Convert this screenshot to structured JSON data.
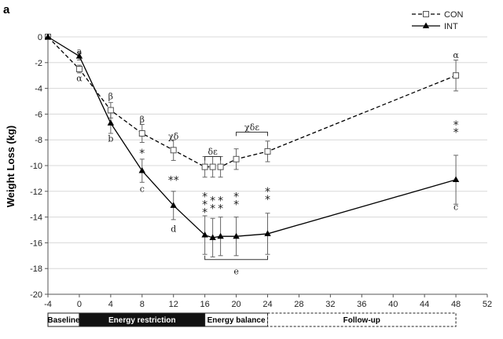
{
  "chart_data": {
    "type": "line",
    "panel_label": "a",
    "xlabel": "",
    "ylabel": "Weight Loss (kg)",
    "xlim": [
      -4,
      52
    ],
    "ylim": [
      -20,
      0
    ],
    "x_ticks": [
      "-4",
      "0",
      "4",
      "8",
      "12",
      "16",
      "20",
      "24",
      "28",
      "32",
      "36",
      "40",
      "44",
      "48",
      "52"
    ],
    "y_ticks": [
      "0",
      "-2",
      "-4",
      "-6",
      "-8",
      "-10",
      "-12",
      "-14",
      "-16",
      "-18",
      "-20"
    ],
    "grid": "horizontal",
    "legend_position": "top-right",
    "series": [
      {
        "name": "CON",
        "style": "dashed",
        "marker": "open-square",
        "color": "#000000",
        "x": [
          -4,
          0,
          4,
          8,
          12,
          16,
          17,
          18,
          20,
          24,
          48
        ],
        "y": [
          0,
          -2.5,
          -5.7,
          -7.5,
          -8.8,
          -10.1,
          -10.1,
          -10.1,
          -9.5,
          -8.9,
          -3.0
        ],
        "err": [
          0,
          0.3,
          0.6,
          0.7,
          0.8,
          0.8,
          0.8,
          0.8,
          0.8,
          0.8,
          1.2
        ]
      },
      {
        "name": "INT",
        "style": "solid",
        "marker": "filled-triangle",
        "color": "#000000",
        "x": [
          -4,
          0,
          4,
          8,
          12,
          16,
          17,
          18,
          20,
          24,
          48
        ],
        "y": [
          0,
          -1.5,
          -6.7,
          -10.4,
          -13.1,
          -15.4,
          -15.6,
          -15.5,
          -15.5,
          -15.3,
          -11.1
        ],
        "err": [
          0,
          0.3,
          0.8,
          0.9,
          1.1,
          1.5,
          1.5,
          1.5,
          1.5,
          1.6,
          1.9
        ]
      }
    ],
    "annotations": [
      {
        "text": "a",
        "x": 0,
        "y": -1.1
      },
      {
        "text": "α",
        "x": 0,
        "y": -3.2
      },
      {
        "text": "β",
        "x": 4,
        "y": -4.6
      },
      {
        "text": "b",
        "x": 4,
        "y": -7.9
      },
      {
        "text": "β",
        "x": 8,
        "y": -6.4
      },
      {
        "text": "*",
        "x": 8,
        "y": -8.9
      },
      {
        "text": "c",
        "x": 8,
        "y": -11.8
      },
      {
        "text": "χδ",
        "x": 12,
        "y": -7.7
      },
      {
        "text": "**",
        "x": 12,
        "y": -11.0
      },
      {
        "text": "d",
        "x": 12,
        "y": -14.9
      },
      {
        "text": "δε",
        "x": 17,
        "y": -8.9
      },
      {
        "text": "χδε",
        "x": 22,
        "y": -7.0
      },
      {
        "text": "*",
        "x": 16,
        "y": -12.3
      },
      {
        "text": "*",
        "x": 16,
        "y": -12.9
      },
      {
        "text": "*",
        "x": 16,
        "y": -13.5
      },
      {
        "text": "*",
        "x": 17,
        "y": -12.6
      },
      {
        "text": "*",
        "x": 17,
        "y": -13.2
      },
      {
        "text": "*",
        "x": 18,
        "y": -12.6
      },
      {
        "text": "*",
        "x": 18,
        "y": -13.2
      },
      {
        "text": "*",
        "x": 20,
        "y": -12.3
      },
      {
        "text": "*",
        "x": 20,
        "y": -12.9
      },
      {
        "text": "*",
        "x": 24,
        "y": -11.9
      },
      {
        "text": "*",
        "x": 24,
        "y": -12.5
      },
      {
        "text": "α",
        "x": 48,
        "y": -1.4
      },
      {
        "text": "*",
        "x": 48,
        "y": -6.7
      },
      {
        "text": "*",
        "x": 48,
        "y": -7.3
      },
      {
        "text": "c",
        "x": 48,
        "y": -13.2
      },
      {
        "text": "e",
        "x": 20,
        "y": -18.2
      }
    ],
    "brackets": [
      {
        "x1": 16,
        "x2": 18,
        "y": -9.3,
        "open": "down"
      },
      {
        "x1": 20,
        "x2": 24,
        "y": -7.4,
        "open": "down"
      },
      {
        "x1": 16,
        "x2": 24,
        "y": -17.3,
        "open": "up"
      }
    ],
    "phases": [
      {
        "label": "Baseline",
        "x1": -4,
        "x2": 0,
        "fill": "#ffffff",
        "text_color": "#000000",
        "border": "solid"
      },
      {
        "label": "Energy restriction",
        "x1": 0,
        "x2": 16,
        "fill": "#111111",
        "text_color": "#ffffff",
        "border": "solid"
      },
      {
        "label": "Energy balance",
        "x1": 16,
        "x2": 24,
        "fill": "#ffffff",
        "text_color": "#000000",
        "border": "solid"
      },
      {
        "label": "Follow-up",
        "x1": 24,
        "x2": 48,
        "fill": "#ffffff",
        "text_color": "#000000",
        "border": "dashed"
      }
    ]
  }
}
